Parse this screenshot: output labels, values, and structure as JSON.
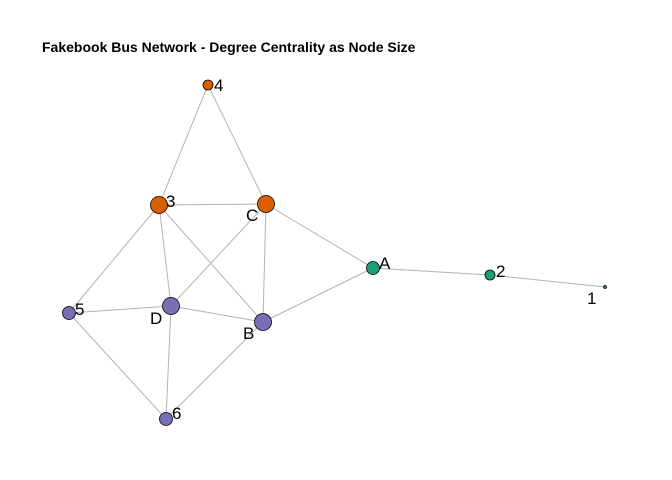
{
  "title": "Fakebook Bus Network - Degree Centrality as Node Size",
  "colors": {
    "orange": "#d95f02",
    "green": "#1b9e77",
    "purple": "#7570b3",
    "edge": "#b3b3b3"
  },
  "nodes": [
    {
      "id": "4",
      "label": "4",
      "color": "orange",
      "degree": 2
    },
    {
      "id": "3",
      "label": "3",
      "color": "orange",
      "degree": 5
    },
    {
      "id": "C",
      "label": "C",
      "color": "orange",
      "degree": 5
    },
    {
      "id": "A",
      "label": "A",
      "color": "green",
      "degree": 3
    },
    {
      "id": "2",
      "label": "2",
      "color": "green",
      "degree": 2
    },
    {
      "id": "1",
      "label": "1",
      "color": "green",
      "degree": 1
    },
    {
      "id": "5",
      "label": "5",
      "color": "purple",
      "degree": 3
    },
    {
      "id": "D",
      "label": "D",
      "color": "purple",
      "degree": 5
    },
    {
      "id": "B",
      "label": "B",
      "color": "purple",
      "degree": 5
    },
    {
      "id": "6",
      "label": "6",
      "color": "purple",
      "degree": 3
    }
  ],
  "edges": [
    [
      "4",
      "3"
    ],
    [
      "4",
      "C"
    ],
    [
      "3",
      "C"
    ],
    [
      "3",
      "5"
    ],
    [
      "3",
      "D"
    ],
    [
      "3",
      "B"
    ],
    [
      "C",
      "D"
    ],
    [
      "C",
      "B"
    ],
    [
      "C",
      "A"
    ],
    [
      "A",
      "B"
    ],
    [
      "A",
      "2"
    ],
    [
      "2",
      "1"
    ],
    [
      "5",
      "D"
    ],
    [
      "5",
      "6"
    ],
    [
      "D",
      "B"
    ],
    [
      "D",
      "6"
    ],
    [
      "B",
      "6"
    ]
  ]
}
